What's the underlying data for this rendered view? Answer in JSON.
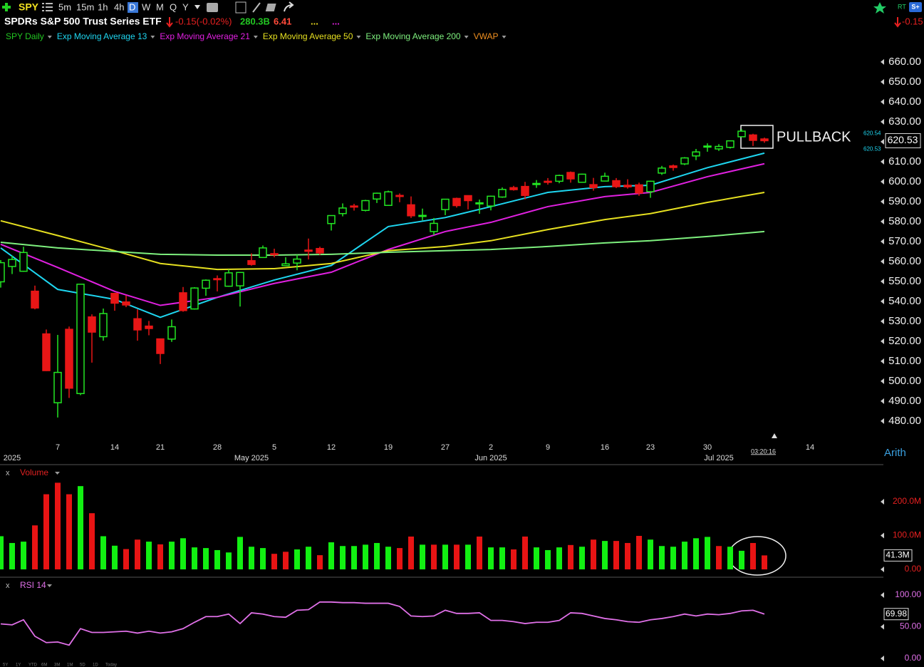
{
  "header": {
    "symbol": "SPY",
    "timeframes": [
      "5m",
      "15m",
      "1h",
      "4h",
      "D",
      "W",
      "M",
      "Q",
      "Y"
    ],
    "active_timeframe": 4,
    "name": "SPDRs S&P 500 Trust Series ETF",
    "change": "-0.15(-0.02%)",
    "market_cap": "280.3B",
    "stat": "6.41",
    "dots": [
      "...",
      "..."
    ],
    "rt_label": "RT",
    "s_label": "S+",
    "right_change": "-0.15",
    "range_buttons": [
      "5Y",
      "1Y",
      "YTD",
      "6M",
      "3M",
      "1M",
      "5D",
      "1D",
      "Today"
    ]
  },
  "chart_data": [
    {
      "type": "candlestick",
      "name": "SPY Daily",
      "name_color": "#22c822",
      "up_color": "#22e622",
      "down_color": "#e81616",
      "x": [
        "2025-03-31",
        "2025-04-01",
        "2025-04-02",
        "2025-04-03",
        "2025-04-04",
        "2025-04-07",
        "2025-04-08",
        "2025-04-09",
        "2025-04-10",
        "2025-04-11",
        "2025-04-14",
        "2025-04-15",
        "2025-04-16",
        "2025-04-17",
        "2025-04-21",
        "2025-04-22",
        "2025-04-23",
        "2025-04-24",
        "2025-04-25",
        "2025-04-28",
        "2025-04-29",
        "2025-04-30",
        "2025-05-01",
        "2025-05-02",
        "2025-05-05",
        "2025-05-06",
        "2025-05-07",
        "2025-05-08",
        "2025-05-09",
        "2025-05-12",
        "2025-05-13",
        "2025-05-14",
        "2025-05-15",
        "2025-05-16",
        "2025-05-19",
        "2025-05-20",
        "2025-05-21",
        "2025-05-22",
        "2025-05-23",
        "2025-05-27",
        "2025-05-28",
        "2025-05-29",
        "2025-05-30",
        "2025-06-02",
        "2025-06-03",
        "2025-06-04",
        "2025-06-05",
        "2025-06-06",
        "2025-06-09",
        "2025-06-10",
        "2025-06-11",
        "2025-06-12",
        "2025-06-13",
        "2025-06-16",
        "2025-06-17",
        "2025-06-18",
        "2025-06-20",
        "2025-06-23",
        "2025-06-24",
        "2025-06-25",
        "2025-06-26",
        "2025-06-27",
        "2025-06-30",
        "2025-07-01",
        "2025-07-02",
        "2025-07-03",
        "2025-07-07",
        "2025-07-08"
      ],
      "open": [
        549.8,
        557.5,
        555.1,
        545.1,
        523.7,
        489.2,
        526.0,
        493.8,
        532.2,
        522.3,
        544.0,
        539.7,
        531.3,
        527.6,
        521.2,
        521.1,
        544.3,
        536.2,
        546.6,
        551.4,
        547.6,
        547.8,
        560.4,
        562.0,
        563.9,
        557.9,
        559.2,
        565.7,
        566.5,
        579.0,
        584.0,
        587.8,
        585.6,
        591.3,
        588.1,
        593.1,
        588.4,
        582.7,
        575.0,
        586.0,
        591.6,
        593.0,
        588.9,
        587.8,
        592.3,
        597.0,
        597.6,
        598.7,
        600.2,
        600.2,
        604.6,
        599.7,
        598.5,
        600.3,
        600.5,
        598.2,
        598.4,
        595.0,
        604.3,
        607.9,
        608.9,
        612.9,
        617.4,
        616.4,
        617.2,
        622.5,
        623.4,
        621.4
      ],
      "high": [
        560.7,
        562.9,
        567.4,
        547.9,
        525.9,
        523.2,
        527.4,
        548.6,
        533.5,
        536.4,
        544.3,
        543.0,
        536.0,
        530.2,
        521.4,
        530.9,
        547.2,
        547.1,
        551.0,
        553.0,
        556.0,
        554.7,
        564.1,
        568.0,
        566.4,
        562.1,
        563.4,
        571.5,
        567.4,
        583.0,
        589.1,
        588.9,
        590.9,
        594.5,
        595.5,
        594.1,
        592.6,
        586.5,
        581.8,
        591.3,
        592.0,
        593.2,
        591.0,
        593.0,
        597.1,
        597.9,
        599.9,
        600.8,
        601.8,
        603.5,
        605.1,
        604.0,
        601.9,
        604.5,
        601.8,
        601.2,
        599.5,
        600.5,
        607.9,
        608.6,
        612.3,
        616.4,
        619.2,
        618.8,
        620.5,
        626.3,
        624.0,
        622.1
      ],
      "low": [
        546.9,
        553.7,
        554.8,
        536.0,
        505.1,
        481.8,
        491.6,
        493.0,
        509.3,
        520.3,
        535.3,
        537.1,
        520.3,
        523.0,
        508.6,
        519.7,
        534.8,
        535.9,
        542.8,
        545.0,
        547.3,
        537.4,
        557.9,
        561.9,
        562.1,
        557.9,
        555.6,
        561.0,
        563.3,
        575.5,
        582.6,
        585.5,
        585.1,
        589.3,
        588.0,
        589.7,
        581.8,
        580.6,
        573.2,
        583.2,
        587.0,
        586.1,
        583.9,
        585.6,
        591.9,
        595.5,
        591.1,
        596.9,
        598.5,
        599.2,
        599.5,
        599.5,
        595.5,
        600.2,
        596.8,
        596.5,
        592.9,
        591.9,
        603.4,
        605.5,
        608.3,
        610.8,
        615.0,
        615.4,
        616.6,
        622.4,
        617.9,
        619.5
      ],
      "close": [
        559.4,
        561.0,
        564.5,
        536.7,
        505.3,
        504.4,
        496.5,
        548.6,
        524.6,
        533.9,
        539.1,
        538.2,
        525.7,
        526.4,
        513.9,
        527.3,
        535.4,
        546.7,
        550.6,
        550.9,
        554.3,
        554.5,
        558.5,
        566.8,
        563.5,
        558.8,
        561.2,
        565.1,
        564.3,
        583.0,
        586.8,
        587.6,
        590.5,
        594.2,
        594.9,
        592.9,
        582.9,
        583.1,
        579.1,
        591.2,
        588.0,
        590.5,
        589.4,
        592.7,
        596.1,
        596.0,
        593.1,
        599.1,
        599.7,
        603.1,
        601.4,
        603.75,
        597.0,
        602.7,
        597.5,
        597.4,
        594.3,
        600.2,
        606.8,
        607.1,
        611.9,
        614.9,
        617.85,
        617.65,
        620.45,
        625.3,
        620.7,
        620.53
      ],
      "last_label": "620.53",
      "quote_labels": [
        "620.54",
        "620.53"
      ],
      "ylim": [
        471.4,
        668.9
      ],
      "yticks": [
        {
          "value": 660,
          "label": "660.00"
        },
        {
          "value": 650,
          "label": "650.00"
        },
        {
          "value": 640,
          "label": "640.00"
        },
        {
          "value": 630,
          "label": "630.00"
        },
        {
          "value": 620,
          "label": "620.00"
        },
        {
          "value": 610,
          "label": "610.00"
        },
        {
          "value": 600,
          "label": "600.00"
        },
        {
          "value": 590,
          "label": "590.00"
        },
        {
          "value": 580,
          "label": "580.00"
        },
        {
          "value": 570,
          "label": "570.00"
        },
        {
          "value": 560,
          "label": "560.00"
        },
        {
          "value": 550,
          "label": "550.00"
        },
        {
          "value": 540,
          "label": "540.00"
        },
        {
          "value": 530,
          "label": "530.00"
        },
        {
          "value": 520,
          "label": "520.00"
        },
        {
          "value": 510,
          "label": "510.00"
        },
        {
          "value": 500,
          "label": "500.00"
        },
        {
          "value": 490,
          "label": "490.00"
        },
        {
          "value": 480,
          "label": "480.00"
        }
      ],
      "xticks": [
        {
          "value": "2025-04-07",
          "label": "7"
        },
        {
          "value": "2025-04-14",
          "label": "14"
        },
        {
          "value": "2025-04-21",
          "label": "21"
        },
        {
          "value": "2025-04-28",
          "label": "28"
        },
        {
          "value": "2025-05-05",
          "label": "5"
        },
        {
          "value": "2025-05-12",
          "label": "12"
        },
        {
          "value": "2025-05-19",
          "label": "19"
        },
        {
          "value": "2025-05-27",
          "label": "27"
        },
        {
          "value": "2025-06-02",
          "label": "2"
        },
        {
          "value": "2025-06-09",
          "label": "9"
        },
        {
          "value": "2025-06-16",
          "label": "16"
        },
        {
          "value": "2025-06-23",
          "label": "23"
        },
        {
          "value": "2025-06-30",
          "label": "30"
        },
        {
          "value": "2025-07-14",
          "label": "14"
        }
      ],
      "month_ticks": [
        {
          "value": "2025-04-01",
          "label": "2025"
        },
        {
          "value": "2025-05-01",
          "label": "May 2025"
        },
        {
          "value": "2025-06-02",
          "label": "Jun 2025"
        },
        {
          "value": "2025-07-01",
          "label": "Jul 2025"
        }
      ],
      "overlays": {
        "x": [
          "2025-03-31",
          "2025-04-07",
          "2025-04-14",
          "2025-04-21",
          "2025-04-28",
          "2025-05-05",
          "2025-05-12",
          "2025-05-19",
          "2025-05-27",
          "2025-06-02",
          "2025-06-09",
          "2025-06-16",
          "2025-06-23",
          "2025-06-30",
          "2025-07-08"
        ],
        "series": [
          {
            "name": "Exp Moving Average 13",
            "color": "#1ed6f0",
            "values": [
              566.8,
              546,
              541,
              532,
              542,
              550.7,
              558,
              577.5,
              582,
              587.5,
              594.6,
              597.5,
              598.2,
              607,
              614.3
            ]
          },
          {
            "name": "Exp Moving Average 21",
            "color": "#e020e0",
            "values": [
              568.6,
              557,
              545,
              538,
              542,
              549,
              554.6,
              566,
              575,
              579.6,
              587.5,
              592.5,
              594.6,
              602.5,
              609
            ]
          },
          {
            "name": "Exp Moving Average 50",
            "color": "#e6e020",
            "values": [
              580.4,
              573,
              565.4,
              559,
              556,
              556.4,
              559,
              565.4,
              567.5,
              570.4,
              576,
              581,
              584,
              589.6,
              594.6
            ]
          },
          {
            "name": "Exp Moving Average 200",
            "color": "#7ef07e",
            "values": [
              569.6,
              566.8,
              565,
              563.6,
              563.2,
              563.2,
              563.6,
              564.6,
              565.4,
              566,
              567.5,
              569.3,
              570.4,
              572.5,
              575
            ]
          }
        ]
      },
      "extra_legend": [
        {
          "name": "VWAP",
          "color": "#f09020"
        }
      ],
      "annotation": "PULLBACK",
      "scale_label": "Arith",
      "time_label": "03:20:16"
    },
    {
      "type": "bar",
      "title": "Volume",
      "close_label": "x",
      "title_color": "#e02020",
      "up_color": "#12f012",
      "down_color": "#e81414",
      "values": [
        98,
        78,
        82,
        130,
        222,
        256,
        222,
        246,
        166,
        98,
        70,
        60,
        88,
        82,
        74,
        82,
        92,
        65,
        63,
        57,
        50,
        96,
        67,
        63,
        46,
        52,
        59,
        67,
        42,
        80,
        69,
        69,
        73,
        78,
        67,
        63,
        97,
        73,
        73,
        73,
        73,
        73,
        97,
        65,
        65,
        59,
        97,
        65,
        57,
        65,
        72,
        67,
        88,
        84,
        84,
        78,
        99,
        88,
        69,
        67,
        82,
        92,
        96,
        69,
        67,
        55,
        78,
        41.3
      ],
      "last_label": "41.3M",
      "ylim": [
        -12.6,
        303.2
      ],
      "yticks": [
        {
          "value": 200,
          "label": "200.0M"
        },
        {
          "value": 100,
          "label": "100.0M"
        },
        {
          "value": 0,
          "label": "0.00"
        }
      ]
    },
    {
      "type": "line",
      "title": "RSI 14",
      "close_label": "x",
      "color": "#e070e8",
      "values": [
        54.5,
        53,
        61,
        35,
        25,
        26,
        21,
        47,
        41,
        41,
        42,
        43,
        40,
        43,
        40,
        42,
        47,
        57,
        66,
        66,
        70,
        55,
        72,
        70,
        66,
        65,
        76,
        77,
        89,
        89,
        88,
        88,
        87,
        87,
        87,
        82,
        67,
        66,
        67,
        76,
        71,
        71,
        72,
        60,
        60,
        58,
        55,
        57,
        57,
        60,
        72,
        71,
        67,
        63,
        61,
        58,
        57,
        61,
        63,
        66,
        70,
        67,
        70,
        69,
        71,
        75,
        76,
        69.98
      ],
      "last_label": "69.98",
      "ylim": [
        -13.5,
        122.5
      ],
      "yticks": [
        {
          "value": 100,
          "label": "100.00"
        },
        {
          "value": 50,
          "label": "50.00"
        },
        {
          "value": 0,
          "label": "0.00"
        }
      ]
    }
  ]
}
